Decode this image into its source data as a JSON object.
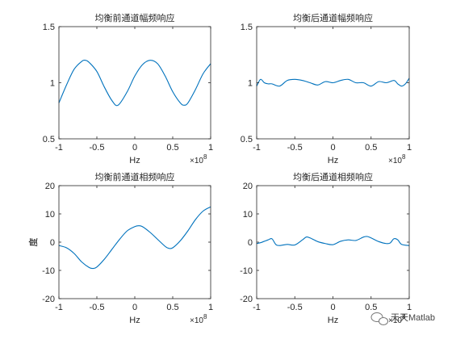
{
  "chart_data": [
    {
      "type": "line",
      "title": "均衡前通道幅频响应",
      "xlabel": "Hz",
      "ylabel": "",
      "x_exponent": "×10",
      "x_exponent_power": "8",
      "xlim": [
        -1,
        1
      ],
      "ylim": [
        0.5,
        1.5
      ],
      "xticks": [
        "-1",
        "-0.5",
        "0",
        "0.5",
        "1"
      ],
      "yticks": [
        "0.5",
        "1",
        "1.5"
      ],
      "grid": false,
      "series": [
        {
          "x": [
            -1,
            -0.9,
            -0.8,
            -0.7,
            -0.65,
            -0.6,
            -0.5,
            -0.4,
            -0.3,
            -0.22,
            -0.1,
            0,
            0.1,
            0.2,
            0.3,
            0.4,
            0.5,
            0.6,
            0.65,
            0.7,
            0.8,
            0.9,
            1
          ],
          "values": [
            0.82,
            0.98,
            1.12,
            1.19,
            1.2,
            1.18,
            1.1,
            0.96,
            0.84,
            0.8,
            0.92,
            1.06,
            1.16,
            1.2,
            1.17,
            1.06,
            0.92,
            0.82,
            0.8,
            0.82,
            0.94,
            1.08,
            1.17
          ],
          "color": "#0072BD"
        }
      ]
    },
    {
      "type": "line",
      "title": "均衡后通道幅频响应",
      "xlabel": "Hz",
      "ylabel": "",
      "x_exponent": "×10",
      "x_exponent_power": "8",
      "xlim": [
        -1,
        1
      ],
      "ylim": [
        0.5,
        1.5
      ],
      "xticks": [
        "-1",
        "-0.5",
        "0",
        "0.5",
        "1"
      ],
      "yticks": [
        "0.5",
        "1",
        "1.5"
      ],
      "grid": false,
      "series": [
        {
          "x": [
            -1,
            -0.95,
            -0.9,
            -0.85,
            -0.8,
            -0.7,
            -0.6,
            -0.5,
            -0.4,
            -0.3,
            -0.2,
            -0.1,
            0,
            0.1,
            0.2,
            0.3,
            0.4,
            0.5,
            0.6,
            0.7,
            0.8,
            0.85,
            0.9,
            0.95,
            1
          ],
          "values": [
            0.97,
            1.03,
            1.0,
            0.99,
            0.99,
            0.97,
            1.02,
            1.03,
            1.02,
            1.0,
            0.98,
            1.01,
            1.0,
            1.02,
            1.03,
            1.0,
            1.0,
            0.97,
            1.01,
            1.0,
            1.02,
            0.99,
            0.97,
            0.99,
            1.04
          ],
          "color": "#0072BD"
        }
      ]
    },
    {
      "type": "line",
      "title": "均衡前通道相频响应",
      "xlabel": "Hz",
      "ylabel": "度",
      "x_exponent": "×10",
      "x_exponent_power": "8",
      "xlim": [
        -1,
        1
      ],
      "ylim": [
        -20,
        20
      ],
      "xticks": [
        "-1",
        "-0.5",
        "0",
        "0.5",
        "1"
      ],
      "yticks": [
        "-20",
        "-10",
        "0",
        "10",
        "20"
      ],
      "grid": false,
      "series": [
        {
          "x": [
            -1,
            -0.9,
            -0.8,
            -0.7,
            -0.6,
            -0.55,
            -0.5,
            -0.4,
            -0.3,
            -0.2,
            -0.1,
            0,
            0.05,
            0.1,
            0.2,
            0.3,
            0.4,
            0.45,
            0.5,
            0.6,
            0.7,
            0.8,
            0.9,
            1
          ],
          "values": [
            -1.2,
            -2.0,
            -4.0,
            -7.0,
            -9.0,
            -9.3,
            -8.8,
            -6.0,
            -2.5,
            1.0,
            4.0,
            5.5,
            5.8,
            5.5,
            3.5,
            1.0,
            -1.5,
            -2.2,
            -2.0,
            0.5,
            4.0,
            8.0,
            11.0,
            12.5
          ],
          "color": "#0072BD"
        }
      ]
    },
    {
      "type": "line",
      "title": "均衡后通道相频响应",
      "xlabel": "Hz",
      "ylabel": "度",
      "x_exponent": "×10",
      "x_exponent_power": "8",
      "xlim": [
        -1,
        1
      ],
      "ylim": [
        -20,
        20
      ],
      "xticks": [
        "-1",
        "-0.5",
        "0",
        "0.5",
        "1"
      ],
      "yticks": [
        "-20",
        "-10",
        "0",
        "10",
        "20"
      ],
      "grid": false,
      "series": [
        {
          "x": [
            -1,
            -0.95,
            -0.9,
            -0.85,
            -0.8,
            -0.75,
            -0.7,
            -0.6,
            -0.5,
            -0.4,
            -0.35,
            -0.3,
            -0.2,
            -0.1,
            0,
            0.1,
            0.2,
            0.3,
            0.4,
            0.45,
            0.5,
            0.6,
            0.7,
            0.75,
            0.8,
            0.85,
            0.9,
            1
          ],
          "values": [
            -0.5,
            -0.2,
            0.3,
            0.8,
            1.2,
            -0.8,
            -1.2,
            -0.8,
            -1.0,
            0.8,
            1.8,
            1.5,
            0.2,
            -0.5,
            -0.9,
            0.3,
            0.8,
            0.6,
            1.8,
            2.0,
            1.5,
            0.2,
            -0.5,
            -0.3,
            1.2,
            0.8,
            -0.8,
            -1.2
          ],
          "color": "#0072BD"
        }
      ]
    }
  ],
  "watermark": {
    "text": "天天Matlab",
    "icon": "wechat-icon"
  }
}
